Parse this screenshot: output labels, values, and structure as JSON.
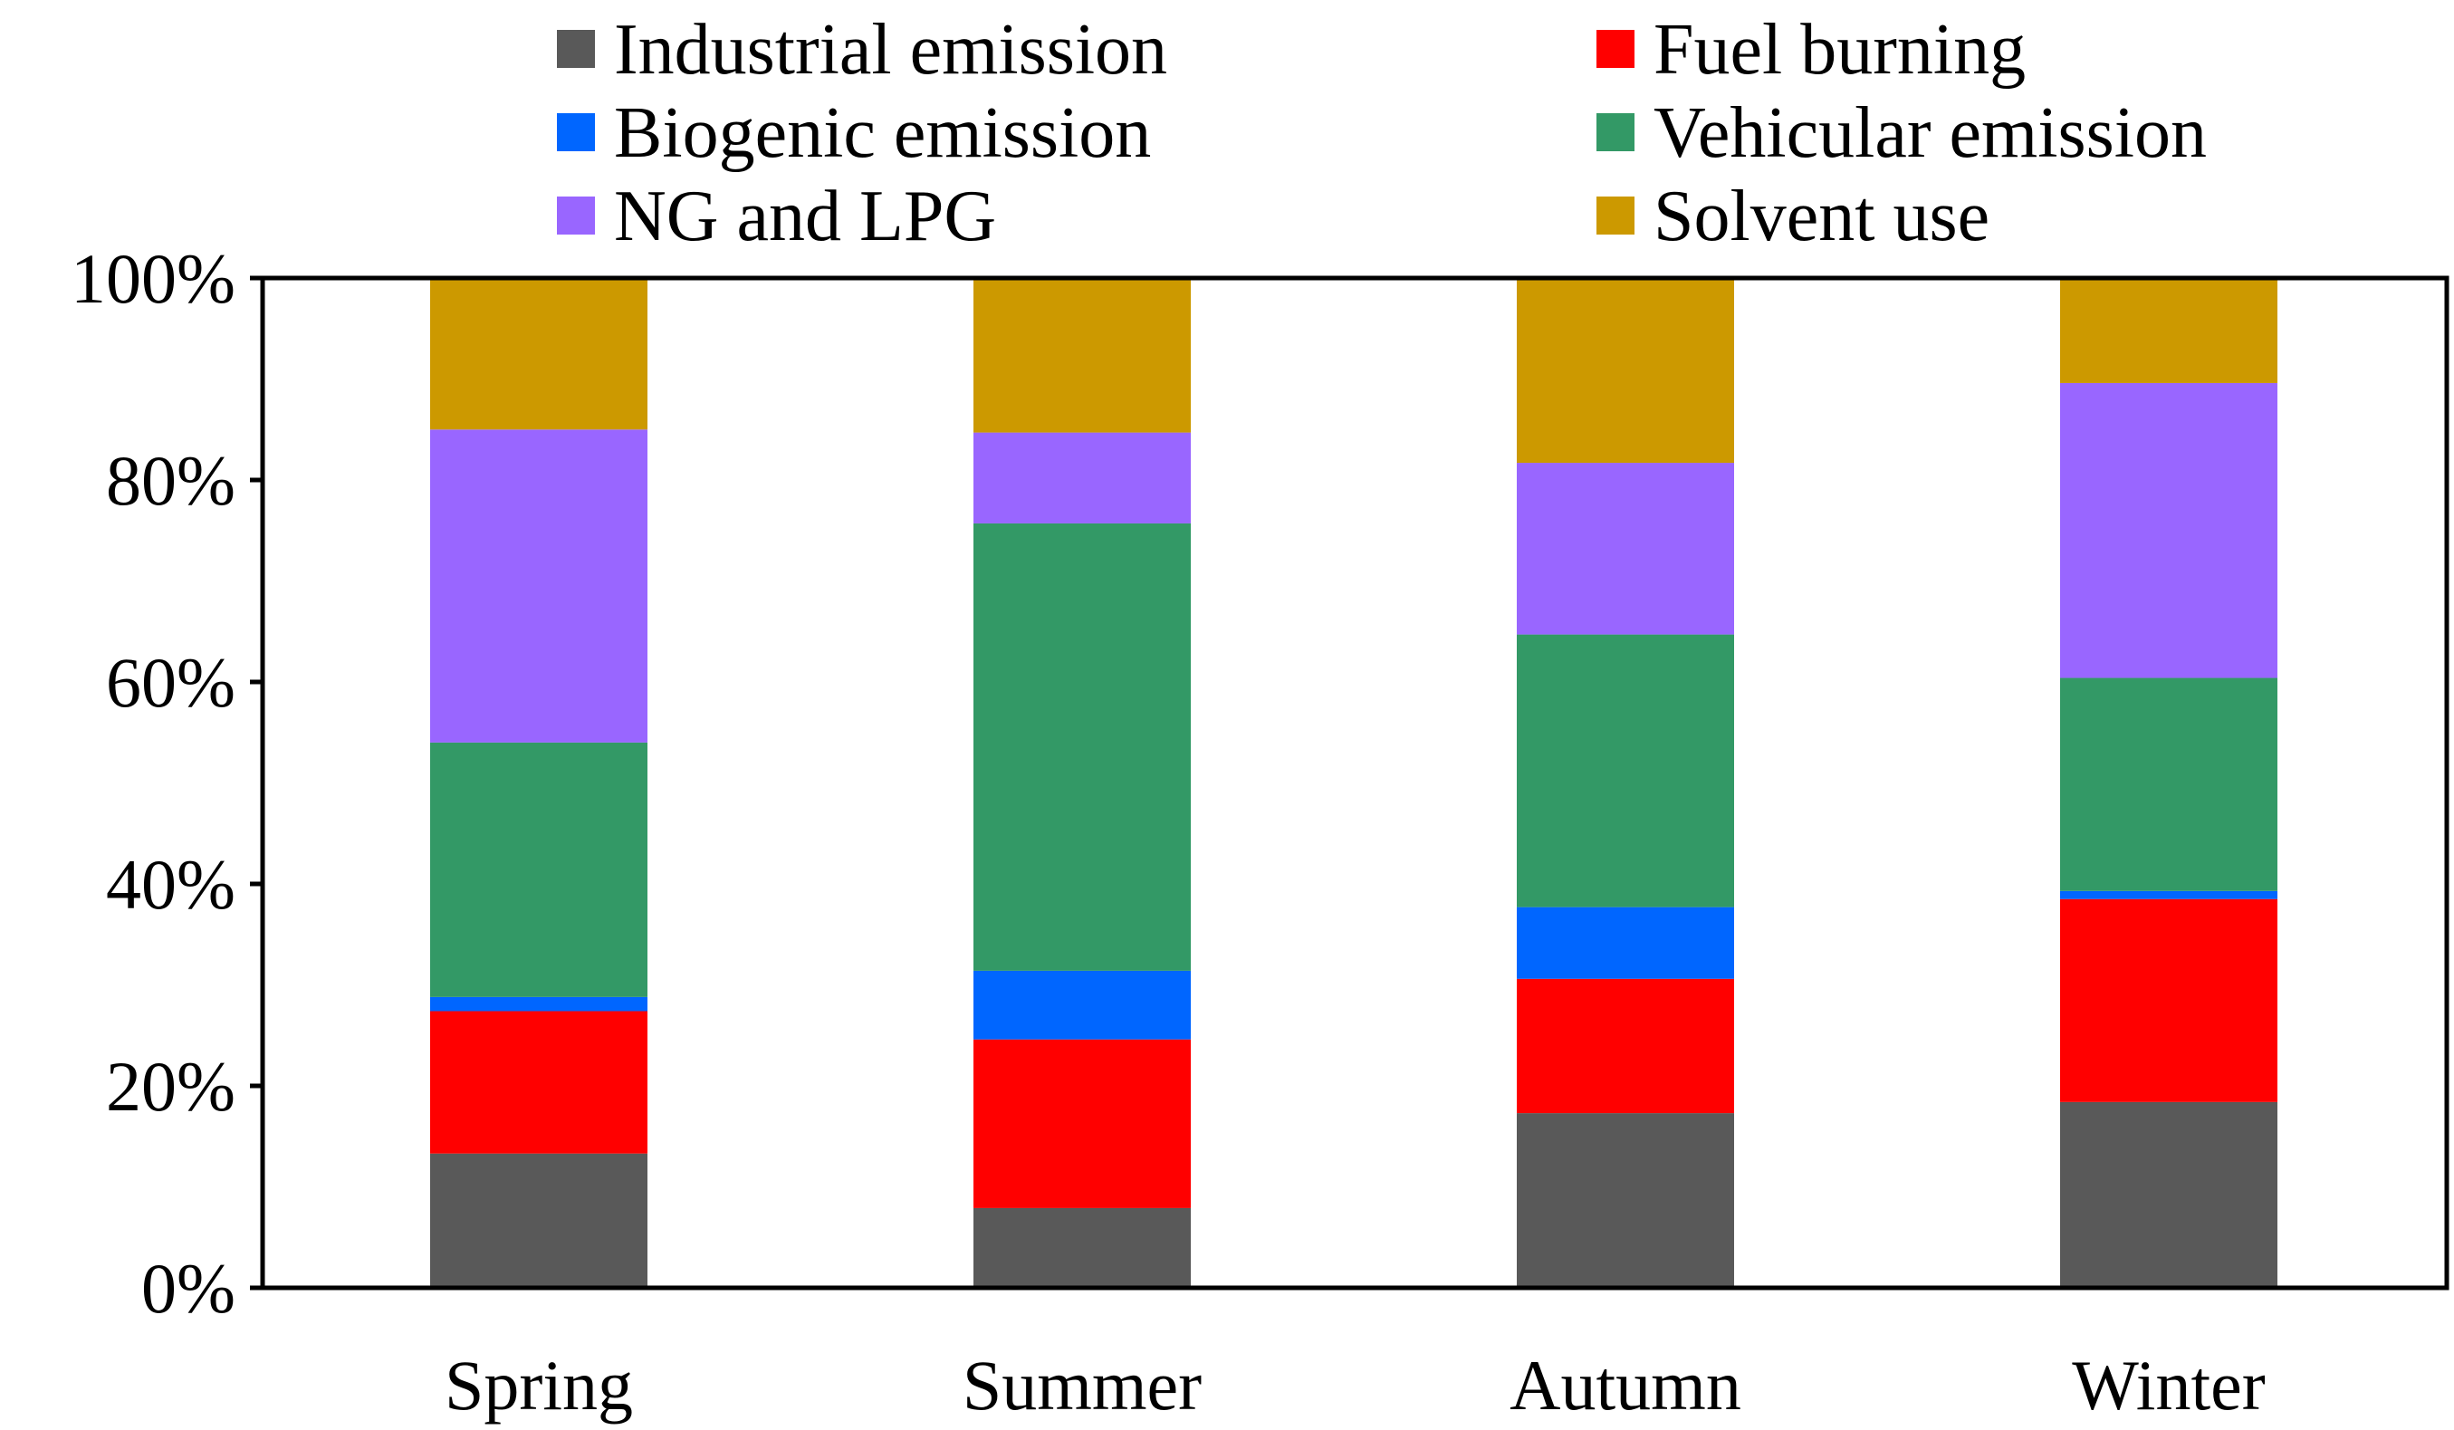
{
  "chart_data": {
    "type": "bar",
    "stacking": "percent",
    "title": "",
    "xlabel": "",
    "ylabel": "",
    "ylim": [
      0,
      100
    ],
    "yticks": [
      0,
      20,
      40,
      60,
      80,
      100
    ],
    "ytick_labels": [
      "0%",
      "20%",
      "40%",
      "60%",
      "80%",
      "100%"
    ],
    "grid": false,
    "legend_position": "top",
    "categories": [
      "Spring",
      "Summer",
      "Autumn",
      "Winter"
    ],
    "series": [
      {
        "name": "Industrial emission",
        "color": "#595959",
        "values": [
          13.3,
          7.9,
          17.3,
          18.4
        ]
      },
      {
        "name": "Fuel burning",
        "color": "#ff0000",
        "values": [
          14.1,
          16.7,
          13.3,
          20.1
        ]
      },
      {
        "name": "Biogenic emission",
        "color": "#0066ff",
        "values": [
          1.4,
          6.8,
          7.1,
          0.8
        ]
      },
      {
        "name": "Vehicular emission",
        "color": "#339966",
        "values": [
          25.2,
          44.3,
          27.0,
          21.1
        ]
      },
      {
        "name": "NG and LPG",
        "color": "#9966ff",
        "values": [
          31.0,
          9.0,
          17.0,
          29.2
        ]
      },
      {
        "name": "Solvent use",
        "color": "#cc9900",
        "values": [
          15.0,
          15.3,
          18.3,
          10.4
        ]
      }
    ]
  }
}
